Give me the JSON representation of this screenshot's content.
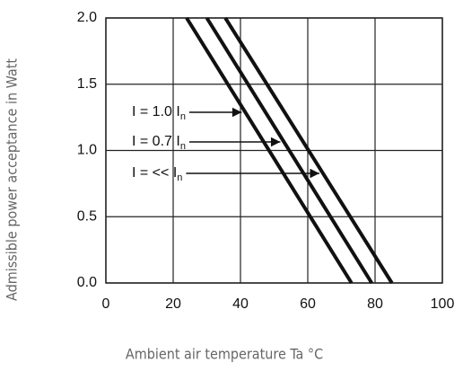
{
  "chart_data": {
    "type": "line",
    "xlabel": "Ambient air temperature Ta °C",
    "ylabel": "Admissible power acceptance in Watt",
    "xlim": [
      0,
      100
    ],
    "xticks": [
      0,
      20,
      40,
      60,
      80,
      100
    ],
    "ylim": [
      0,
      2
    ],
    "yticks": [
      {
        "value": 0,
        "label": "0.0"
      },
      {
        "value": 0.5,
        "label": "0.5"
      },
      {
        "value": 1,
        "label": "1.0"
      },
      {
        "value": 1.5,
        "label": "1.5"
      },
      {
        "value": 2,
        "label": "2.0"
      }
    ],
    "grid": true,
    "series": [
      {
        "name": "I = 1.0 I",
        "name_sub": "n",
        "color": "#111111",
        "x": [
          24,
          73
        ],
        "values": [
          2,
          0
        ]
      },
      {
        "name": "I = 0.7 I",
        "name_sub": "n",
        "color": "#111111",
        "x": [
          30,
          79
        ],
        "values": [
          2,
          0
        ]
      },
      {
        "name": "I = << I",
        "name_sub": "n",
        "color": "#111111",
        "x": [
          35.5,
          85
        ],
        "values": [
          2,
          0
        ]
      }
    ]
  }
}
